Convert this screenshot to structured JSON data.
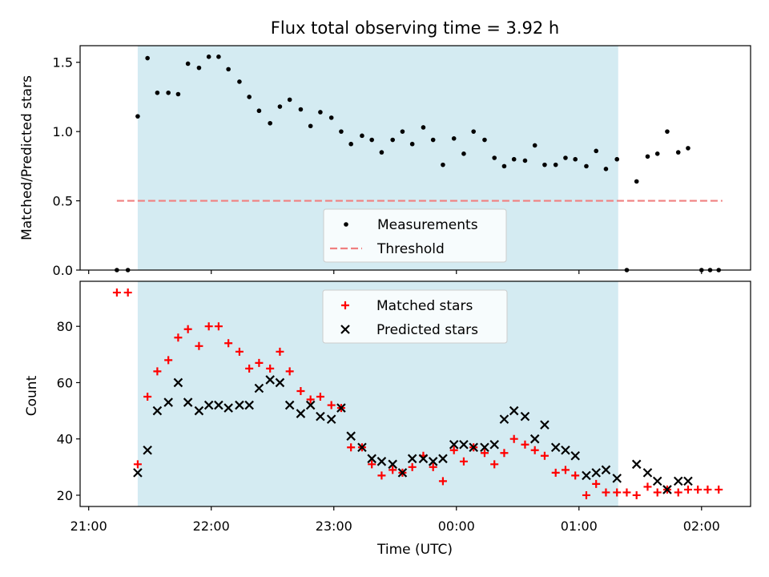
{
  "chart_data": [
    {
      "type": "scatter",
      "title": "Flux total observing time = 3.92 h",
      "xlabel": "",
      "ylabel": "Matched/Predicted stars",
      "x_unit": "hours since 21:00 UTC",
      "xlim": [
        -0.07,
        5.4
      ],
      "ylim": [
        0,
        1.62
      ],
      "yticks": [
        0.0,
        0.5,
        1.0,
        1.5
      ],
      "ytick_labels": [
        "0.0",
        "0.5",
        "1.0",
        "1.5"
      ],
      "shaded_region": {
        "x0": 0.4,
        "x1": 4.32,
        "color": "#add8e6"
      },
      "legend": {
        "position": "lower-center",
        "entries": [
          "Measurements",
          "Threshold"
        ]
      },
      "threshold": {
        "name": "Threshold",
        "y": 0.5,
        "x0": 0.23,
        "x1": 5.17,
        "color": "#f08080",
        "style": "dashed"
      },
      "series": [
        {
          "name": "Measurements",
          "color": "#000000",
          "marker": "dot",
          "x": [
            0.23,
            0.32,
            0.4,
            0.48,
            0.56,
            0.65,
            0.73,
            0.81,
            0.9,
            0.98,
            1.06,
            1.14,
            1.23,
            1.31,
            1.39,
            1.48,
            1.56,
            1.64,
            1.73,
            1.81,
            1.89,
            1.98,
            2.06,
            2.14,
            2.23,
            2.31,
            2.39,
            2.48,
            2.56,
            2.64,
            2.73,
            2.81,
            2.89,
            2.98,
            3.06,
            3.14,
            3.23,
            3.31,
            3.39,
            3.47,
            3.56,
            3.64,
            3.72,
            3.81,
            3.89,
            3.97,
            4.06,
            4.14,
            4.22,
            4.31,
            4.39,
            4.47,
            4.56,
            4.64,
            4.72,
            4.81,
            4.89,
            5.0,
            5.07,
            5.14
          ],
          "values": [
            0.0,
            0.0,
            1.11,
            1.53,
            1.28,
            1.28,
            1.27,
            1.49,
            1.46,
            1.54,
            1.54,
            1.45,
            1.36,
            1.25,
            1.15,
            1.06,
            1.18,
            1.23,
            1.16,
            1.04,
            1.14,
            1.1,
            1.0,
            0.91,
            0.97,
            0.94,
            0.85,
            0.94,
            1.0,
            0.91,
            1.03,
            0.94,
            0.76,
            0.95,
            0.84,
            1.0,
            0.94,
            0.81,
            0.75,
            0.8,
            0.79,
            0.9,
            0.76,
            0.76,
            0.81,
            0.8,
            0.75,
            0.86,
            0.73,
            0.8,
            0.0,
            0.64,
            0.82,
            0.84,
            1.0,
            0.85,
            0.88,
            0.0,
            0.0,
            0.0
          ]
        }
      ]
    },
    {
      "type": "scatter",
      "title": "",
      "xlabel": "Time (UTC)",
      "ylabel": "Count",
      "x_unit": "hours since 21:00 UTC",
      "xlim": [
        -0.07,
        5.4
      ],
      "ylim": [
        16,
        96
      ],
      "xticks": [
        0,
        1,
        2,
        3,
        4,
        5
      ],
      "xtick_labels": [
        "21:00",
        "22:00",
        "23:00",
        "00:00",
        "01:00",
        "02:00"
      ],
      "yticks": [
        20,
        40,
        60,
        80
      ],
      "ytick_labels": [
        "20",
        "40",
        "60",
        "80"
      ],
      "shaded_region": {
        "x0": 0.4,
        "x1": 4.32,
        "color": "#add8e6"
      },
      "legend": {
        "position": "upper-center",
        "entries": [
          "Matched stars",
          "Predicted stars"
        ]
      },
      "series": [
        {
          "name": "Matched stars",
          "color": "#ff0000",
          "marker": "plus",
          "x": [
            0.23,
            0.32,
            0.4,
            0.48,
            0.56,
            0.65,
            0.73,
            0.81,
            0.9,
            0.98,
            1.06,
            1.14,
            1.23,
            1.31,
            1.39,
            1.48,
            1.56,
            1.64,
            1.73,
            1.81,
            1.89,
            1.98,
            2.06,
            2.14,
            2.23,
            2.31,
            2.39,
            2.48,
            2.56,
            2.64,
            2.73,
            2.81,
            2.89,
            2.98,
            3.06,
            3.14,
            3.23,
            3.31,
            3.39,
            3.47,
            3.56,
            3.64,
            3.72,
            3.81,
            3.89,
            3.97,
            4.06,
            4.14,
            4.22,
            4.31,
            4.39,
            4.47,
            4.56,
            4.64,
            4.72,
            4.81,
            4.89,
            4.97,
            5.05,
            5.14
          ],
          "values": [
            92,
            92,
            31,
            55,
            64,
            68,
            76,
            79,
            73,
            80,
            80,
            74,
            71,
            65,
            67,
            65,
            71,
            64,
            57,
            54,
            55,
            52,
            51,
            37,
            37,
            31,
            27,
            29,
            28,
            30,
            34,
            30,
            25,
            36,
            32,
            37,
            35,
            31,
            35,
            40,
            38,
            36,
            34,
            28,
            29,
            27,
            20,
            24,
            21,
            21,
            21,
            20,
            23,
            21,
            22,
            21,
            22,
            22,
            22,
            22
          ]
        },
        {
          "name": "Predicted stars",
          "color": "#000000",
          "marker": "x",
          "x": [
            0.4,
            0.48,
            0.56,
            0.65,
            0.73,
            0.81,
            0.9,
            0.98,
            1.06,
            1.14,
            1.23,
            1.31,
            1.39,
            1.48,
            1.56,
            1.64,
            1.73,
            1.81,
            1.89,
            1.98,
            2.06,
            2.14,
            2.23,
            2.31,
            2.39,
            2.48,
            2.56,
            2.64,
            2.73,
            2.81,
            2.89,
            2.98,
            3.06,
            3.14,
            3.23,
            3.31,
            3.39,
            3.47,
            3.56,
            3.64,
            3.72,
            3.81,
            3.89,
            3.97,
            4.06,
            4.14,
            4.22,
            4.31,
            4.47,
            4.56,
            4.64,
            4.72,
            4.81,
            4.89
          ],
          "values": [
            28,
            36,
            50,
            53,
            60,
            53,
            50,
            52,
            52,
            51,
            52,
            52,
            58,
            61,
            60,
            52,
            49,
            52,
            48,
            47,
            51,
            41,
            37,
            33,
            32,
            31,
            28,
            33,
            33,
            32,
            33,
            38,
            38,
            37,
            37,
            38,
            47,
            50,
            48,
            40,
            45,
            37,
            36,
            34,
            27,
            28,
            29,
            26,
            31,
            28,
            25,
            22,
            25,
            25
          ]
        }
      ]
    }
  ]
}
